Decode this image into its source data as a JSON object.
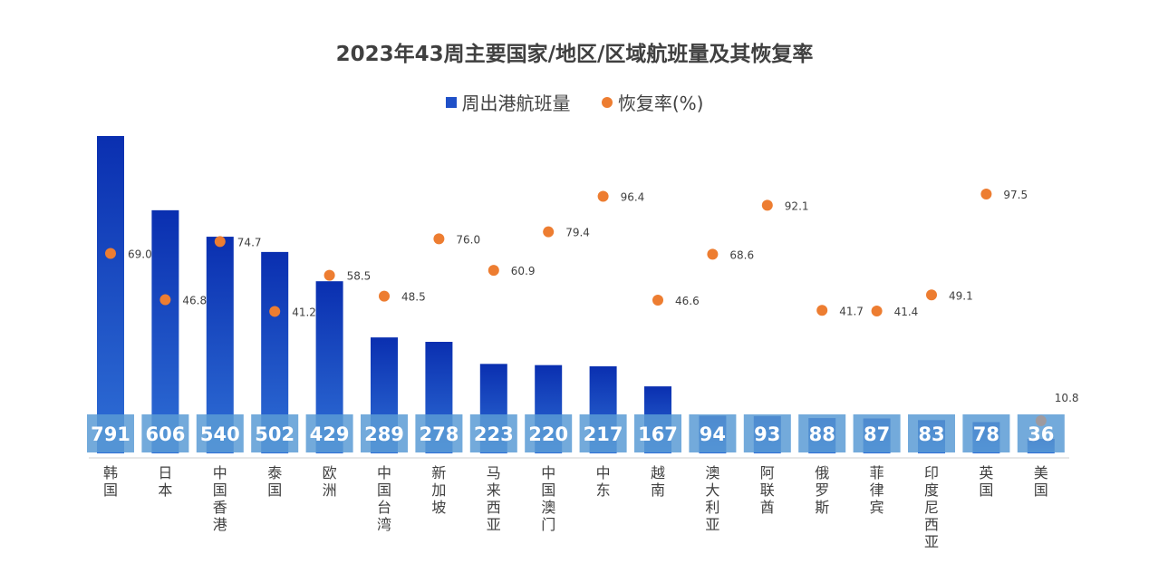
{
  "chart_data": {
    "type": "bar",
    "title": "2023年43周主要国家/地区/区域航班量及其恢复率",
    "categories": [
      "韩国",
      "日本",
      "中国香港",
      "泰国",
      "欧洲",
      "中国台湾",
      "新加坡",
      "马来西亚",
      "中国澳门",
      "中东",
      "越南",
      "澳大利亚",
      "阿联酋",
      "俄罗斯",
      "菲律宾",
      "印度尼西亚",
      "英国",
      "美国"
    ],
    "series": [
      {
        "name": "周出港航班量",
        "type": "bar",
        "color": "#1f50c8",
        "values": [
          791,
          606,
          540,
          502,
          429,
          289,
          278,
          223,
          220,
          217,
          167,
          94,
          93,
          88,
          87,
          83,
          78,
          36
        ]
      },
      {
        "name": "恢复率(%)",
        "type": "scatter",
        "color": "#ed7d31",
        "values": [
          69.0,
          46.8,
          74.7,
          41.2,
          58.5,
          48.5,
          76.0,
          60.9,
          79.4,
          96.4,
          46.6,
          68.6,
          92.1,
          41.7,
          41.4,
          49.1,
          97.5,
          10.8
        ]
      }
    ],
    "value_labels": [
      "791",
      "606",
      "540",
      "502",
      "429",
      "289",
      "278",
      "223",
      "220",
      "217",
      "167",
      "94",
      "93",
      "88",
      "87",
      "83",
      "78",
      "36"
    ],
    "rate_labels": [
      "69.0",
      "46.8",
      "74.7",
      "41.2",
      "58.5",
      "48.5",
      "76.0",
      "60.9",
      "79.4",
      "96.4",
      "46.6",
      "68.6",
      "92.1",
      "41.7",
      "41.4",
      "49.1",
      "97.5",
      "10.8"
    ],
    "legend": "top-center",
    "grid": false
  }
}
